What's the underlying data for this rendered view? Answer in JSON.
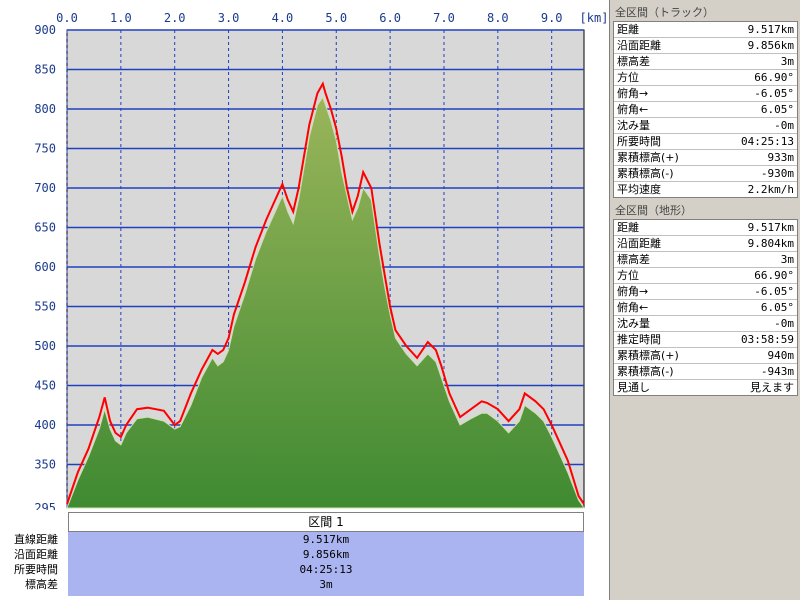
{
  "chart_data": {
    "type": "area",
    "xlabel": "[km]",
    "ylabel": "",
    "xlim": [
      0,
      9.6
    ],
    "ylim": [
      295,
      900
    ],
    "x_ticks": [
      "0.0",
      "1.0",
      "2.0",
      "3.0",
      "4.0",
      "5.0",
      "6.0",
      "7.0",
      "8.0",
      "9.0"
    ],
    "y_ticks": [
      "900",
      "850",
      "800",
      "750",
      "700",
      "650",
      "600",
      "550",
      "500",
      "450",
      "400",
      "350",
      "295"
    ],
    "grid": true,
    "series": [
      {
        "color": "#ff0000",
        "x": [
          0,
          0.2,
          0.4,
          0.6,
          0.7,
          0.8,
          0.9,
          1.0,
          1.1,
          1.3,
          1.5,
          1.8,
          2.0,
          2.1,
          2.3,
          2.5,
          2.7,
          2.8,
          2.9,
          3.0,
          3.1,
          3.3,
          3.5,
          3.7,
          3.9,
          4.0,
          4.1,
          4.2,
          4.3,
          4.5,
          4.65,
          4.75,
          4.8,
          4.9,
          5.0,
          5.1,
          5.2,
          5.3,
          5.4,
          5.5,
          5.65,
          5.8,
          5.9,
          6.0,
          6.1,
          6.3,
          6.5,
          6.7,
          6.85,
          6.95,
          7.1,
          7.3,
          7.5,
          7.7,
          7.8,
          8.0,
          8.2,
          8.4,
          8.5,
          8.7,
          8.85,
          9.0,
          9.1,
          9.3,
          9.5,
          9.6
        ],
        "values": [
          300,
          340,
          370,
          410,
          435,
          405,
          390,
          385,
          400,
          420,
          422,
          418,
          400,
          405,
          440,
          470,
          495,
          490,
          495,
          510,
          540,
          580,
          625,
          660,
          690,
          705,
          685,
          670,
          700,
          780,
          820,
          832,
          820,
          800,
          775,
          740,
          700,
          670,
          690,
          720,
          700,
          630,
          590,
          550,
          520,
          500,
          485,
          505,
          495,
          475,
          440,
          410,
          420,
          430,
          428,
          420,
          405,
          420,
          440,
          430,
          420,
          400,
          385,
          355,
          310,
          300
        ]
      },
      {
        "color": "#6a9a3c",
        "x": [
          0,
          0.2,
          0.4,
          0.6,
          0.7,
          0.8,
          0.9,
          1.0,
          1.1,
          1.3,
          1.5,
          1.8,
          2.0,
          2.1,
          2.3,
          2.5,
          2.7,
          2.8,
          2.9,
          3.0,
          3.1,
          3.3,
          3.5,
          3.7,
          3.9,
          4.0,
          4.1,
          4.2,
          4.3,
          4.5,
          4.65,
          4.75,
          4.8,
          4.9,
          5.0,
          5.1,
          5.2,
          5.3,
          5.4,
          5.5,
          5.65,
          5.8,
          5.9,
          6.0,
          6.1,
          6.3,
          6.5,
          6.7,
          6.85,
          6.95,
          7.1,
          7.3,
          7.5,
          7.7,
          7.8,
          8.0,
          8.2,
          8.4,
          8.5,
          8.7,
          8.85,
          9.0,
          9.1,
          9.3,
          9.5,
          9.6
        ],
        "values": [
          295,
          330,
          360,
          395,
          420,
          395,
          380,
          375,
          390,
          408,
          410,
          405,
          395,
          398,
          425,
          460,
          485,
          475,
          480,
          495,
          525,
          565,
          610,
          645,
          675,
          690,
          670,
          655,
          685,
          765,
          805,
          815,
          805,
          785,
          760,
          720,
          690,
          660,
          675,
          700,
          685,
          615,
          575,
          540,
          510,
          490,
          475,
          490,
          480,
          460,
          430,
          400,
          408,
          415,
          415,
          405,
          390,
          405,
          425,
          415,
          405,
          385,
          370,
          340,
          305,
          295
        ]
      }
    ]
  },
  "panel": {
    "track": {
      "header": "全区間（トラック）",
      "rows": [
        {
          "label": "距離",
          "value": "9.517km"
        },
        {
          "label": "沿面距離",
          "value": "9.856km"
        },
        {
          "label": "標高差",
          "value": "3m"
        },
        {
          "label": "方位",
          "value": "66.90°"
        },
        {
          "label": "俯角→",
          "value": "-6.05°"
        },
        {
          "label": "俯角←",
          "value": "6.05°"
        },
        {
          "label": "沈み量",
          "value": "-0m"
        },
        {
          "label": "所要時間",
          "value": "04:25:13"
        },
        {
          "label": "累積標高(+)",
          "value": "933m"
        },
        {
          "label": "累積標高(-)",
          "value": "-930m"
        },
        {
          "label": "平均速度",
          "value": "2.2km/h"
        }
      ]
    },
    "terrain": {
      "header": "全区間（地形）",
      "rows": [
        {
          "label": "距離",
          "value": "9.517km"
        },
        {
          "label": "沿面距離",
          "value": "9.804km"
        },
        {
          "label": "標高差",
          "value": "3m"
        },
        {
          "label": "方位",
          "value": "66.90°"
        },
        {
          "label": "俯角→",
          "value": "-6.05°"
        },
        {
          "label": "俯角←",
          "value": "6.05°"
        },
        {
          "label": "沈み量",
          "value": "-0m"
        },
        {
          "label": "推定時間",
          "value": "03:58:59"
        },
        {
          "label": "累積標高(+)",
          "value": "940m"
        },
        {
          "label": "累積標高(-)",
          "value": "-943m"
        },
        {
          "label": "見通し",
          "value": "見えます"
        }
      ]
    }
  },
  "segment": {
    "title": "区間 1",
    "labels": [
      "直線距離",
      "沿面距離",
      "所要時間",
      "標高差"
    ],
    "values": [
      "9.517km",
      "9.856km",
      "04:25:13",
      "3m"
    ]
  }
}
